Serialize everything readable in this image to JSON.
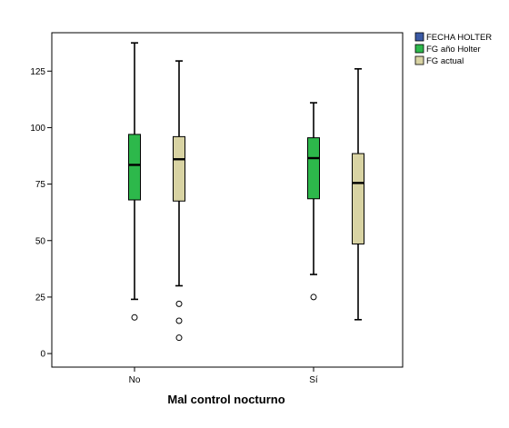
{
  "chart_data": {
    "type": "boxplot",
    "title": "",
    "xlabel": "Mal control nocturno",
    "ylabel": "",
    "categories": [
      "No",
      "Sí"
    ],
    "ylim": [
      -6,
      142
    ],
    "yticks": [
      0,
      25,
      50,
      75,
      100,
      125
    ],
    "grid": false,
    "legend_position": "top-right",
    "series": [
      {
        "name": "FECHA HOLTER",
        "color": "#3b5aa5",
        "boxes": []
      },
      {
        "name": "FG año Holter",
        "color": "#2db84b",
        "boxes": [
          {
            "category": "No",
            "min": 24,
            "q1": 68,
            "median": 83.5,
            "q3": 97,
            "max": 137.5,
            "outliers": [
              16
            ]
          },
          {
            "category": "Sí",
            "min": 35,
            "q1": 68.5,
            "median": 86.5,
            "q3": 95.5,
            "max": 111,
            "outliers": [
              25
            ]
          }
        ]
      },
      {
        "name": "FG actual",
        "color": "#d8d3a3",
        "boxes": [
          {
            "category": "No",
            "min": 30,
            "q1": 67.5,
            "median": 86,
            "q3": 96,
            "max": 129.5,
            "outliers": [
              22,
              14.5,
              7
            ]
          },
          {
            "category": "Sí",
            "min": 15,
            "q1": 48.5,
            "median": 75.5,
            "q3": 88.5,
            "max": 126,
            "outliers": []
          }
        ]
      }
    ]
  }
}
